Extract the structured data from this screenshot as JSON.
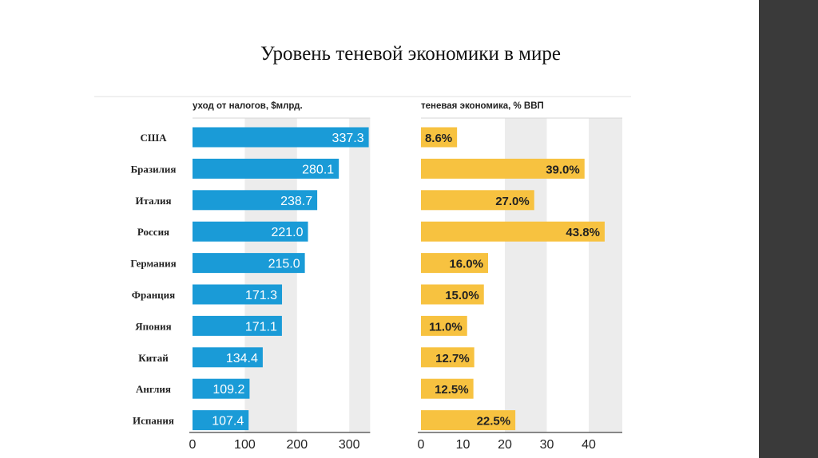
{
  "slide": {
    "title": "Уровень теневой экономики в мире"
  },
  "colors": {
    "left_bars": "#1a9bd7",
    "right_bars": "#f7c240",
    "band": "#ececec",
    "background": "#ffffff",
    "side_strip": "#3a3a3a"
  },
  "chart_data": [
    {
      "type": "bar",
      "orientation": "horizontal",
      "title": "уход от налогов, $млрд.",
      "categories": [
        "США",
        "Бразилия",
        "Италия",
        "Россия",
        "Германия",
        "Франция",
        "Япония",
        "Китай",
        "Англия",
        "Испания"
      ],
      "values": [
        337.3,
        280.1,
        238.7,
        221.0,
        215.0,
        171.3,
        171.1,
        134.4,
        109.2,
        107.4
      ],
      "value_labels": [
        "337.3",
        "280.1",
        "238.7",
        "221.0",
        "215.0",
        "171.3",
        "171.1",
        "134.4",
        "109.2",
        "107.4"
      ],
      "xlim": [
        0,
        340
      ],
      "ticks": [
        0,
        100,
        200,
        300
      ],
      "tick_labels": [
        "0",
        "100",
        "200",
        "300"
      ],
      "shaded_bands": [
        [
          100,
          200
        ],
        [
          300,
          340
        ]
      ]
    },
    {
      "type": "bar",
      "orientation": "horizontal",
      "title": "теневая экономика, % ВВП",
      "categories": [
        "США",
        "Бразилия",
        "Италия",
        "Россия",
        "Германия",
        "Франция",
        "Япония",
        "Китай",
        "Англия",
        "Испания"
      ],
      "values": [
        8.6,
        39.0,
        27.0,
        43.8,
        16.0,
        15.0,
        11.0,
        12.7,
        12.5,
        22.5
      ],
      "value_labels": [
        "8.6%",
        "39.0%",
        "27.0%",
        "43.8%",
        "16.0%",
        "15.0%",
        "11.0%",
        "12.7%",
        "12.5%",
        "22.5%"
      ],
      "xlim": [
        0,
        48
      ],
      "ticks": [
        0,
        10,
        20,
        30,
        40
      ],
      "tick_labels": [
        "0",
        "10",
        "20",
        "30",
        "40"
      ],
      "shaded_bands": [
        [
          20,
          30
        ],
        [
          40,
          48
        ]
      ]
    }
  ]
}
